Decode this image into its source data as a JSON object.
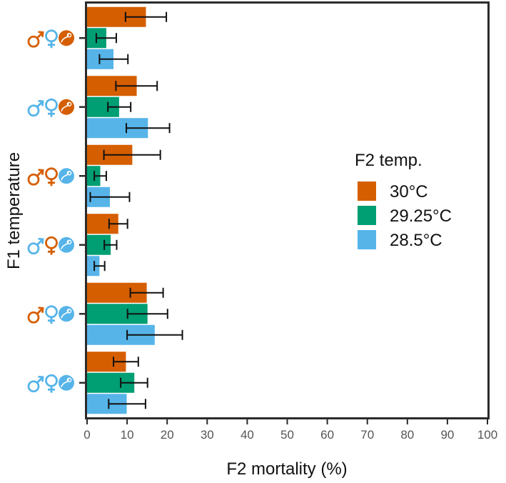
{
  "chart_data": {
    "type": "bar",
    "orientation": "horizontal",
    "xlabel": "F2 mortality (%)",
    "ylabel": "F1 temperature",
    "xlim": [
      0,
      100
    ],
    "xticks": [
      "0",
      "10",
      "20",
      "30",
      "40",
      "50",
      "60",
      "70",
      "80",
      "90",
      "100"
    ],
    "grid": false,
    "legend": {
      "title": "F2 temp.",
      "position": "right"
    },
    "categories": [
      {
        "male": "hot",
        "female": "cool",
        "offspring": "hot"
      },
      {
        "male": "cool",
        "female": "cool",
        "offspring": "hot"
      },
      {
        "male": "hot",
        "female": "hot",
        "offspring": "cool"
      },
      {
        "male": "cool",
        "female": "hot",
        "offspring": "cool"
      },
      {
        "male": "hot",
        "female": "cool",
        "offspring": "cool"
      },
      {
        "male": "cool",
        "female": "cool",
        "offspring": "cool"
      }
    ],
    "series": [
      {
        "name": "30°C",
        "color": "#d55e00",
        "values": [
          14.7,
          12.4,
          11.3,
          7.8,
          14.9,
          9.7
        ],
        "err_low": [
          9.6,
          7.2,
          4.2,
          5.5,
          10.8,
          6.6
        ],
        "err_high": [
          19.8,
          17.5,
          18.3,
          10.1,
          19.0,
          12.8
        ]
      },
      {
        "name": "29.25°C",
        "color": "#009e73",
        "values": [
          4.8,
          8.0,
          3.3,
          5.9,
          15.1,
          11.8
        ],
        "err_low": [
          2.3,
          5.2,
          1.8,
          4.3,
          10.1,
          8.4
        ],
        "err_high": [
          7.3,
          10.9,
          4.8,
          7.4,
          20.1,
          15.1
        ]
      },
      {
        "name": "28.5°C",
        "color": "#56b4e9",
        "values": [
          6.6,
          15.2,
          5.7,
          3.1,
          16.9,
          9.9
        ],
        "err_low": [
          3.1,
          9.8,
          0.8,
          1.8,
          10.0,
          5.4
        ],
        "err_high": [
          10.2,
          20.6,
          10.6,
          4.4,
          23.8,
          14.6
        ]
      }
    ],
    "symbol_colors": {
      "hot": "#d55e00",
      "cool": "#56b4e9"
    }
  }
}
